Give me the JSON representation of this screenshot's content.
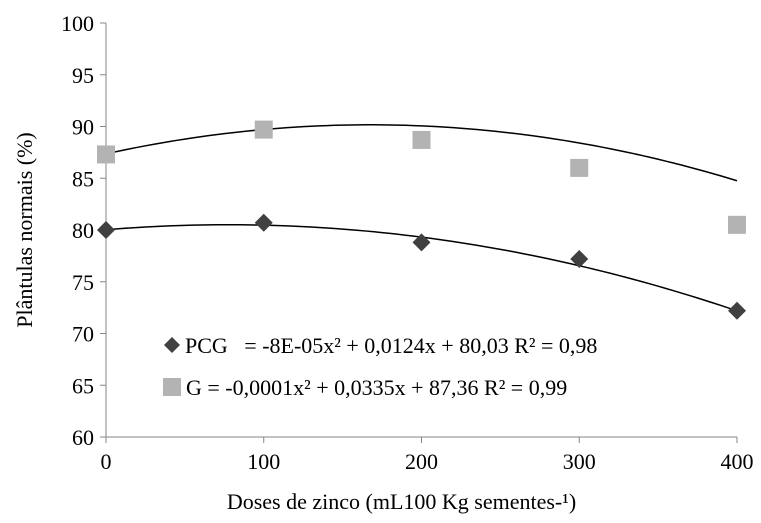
{
  "chart_data": {
    "type": "scatter",
    "xlabel": "Doses de zinco (mL100 Kg sementes-¹)",
    "ylabel": "Plântulas normais (%)",
    "xlim": [
      0,
      400
    ],
    "ylim": [
      60,
      100
    ],
    "xticks": [
      0,
      100,
      200,
      300,
      400
    ],
    "yticks": [
      60,
      65,
      70,
      75,
      80,
      85,
      90,
      95,
      100
    ],
    "grid": false,
    "legend_position": "bottom-left",
    "series": [
      {
        "name": "PCG",
        "legend_text": "PCG   = -8E-05x² + 0,0124x + 80,03 R² = 0,98",
        "marker": "diamond",
        "color": "#404040",
        "x": [
          0,
          100,
          200,
          300,
          400
        ],
        "y": [
          80.0,
          80.7,
          78.8,
          77.2,
          72.2
        ],
        "trendline": {
          "type": "polynomial",
          "coefficients": [
            -8e-05,
            0.0124,
            80.03
          ]
        }
      },
      {
        "name": "G",
        "legend_text": "G = -0,0001x² + 0,0335x + 87,36 R² = 0,99",
        "marker": "square",
        "color": "#b3b3b3",
        "x": [
          0,
          100,
          200,
          300,
          400
        ],
        "y": [
          87.3,
          89.7,
          88.7,
          86.0,
          80.5
        ],
        "trendline": {
          "type": "polynomial",
          "coefficients": [
            -0.0001,
            0.0335,
            87.36
          ]
        }
      }
    ]
  }
}
